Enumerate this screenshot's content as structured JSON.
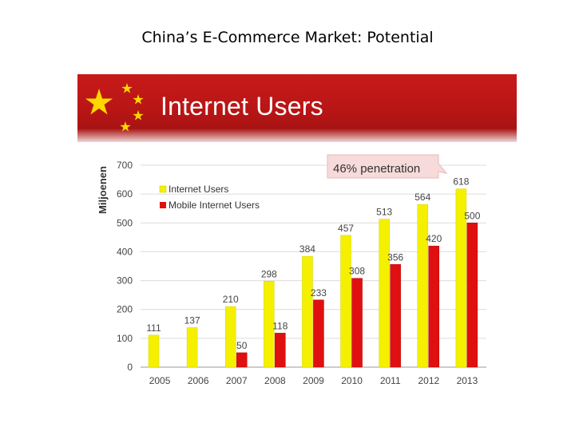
{
  "slide": {
    "title": "China’s E-Commerce Market: Potential"
  },
  "banner": {
    "title": "Internet Users",
    "icon": "china-flag-stars-icon"
  },
  "chart_data": {
    "type": "bar",
    "title": "Internet Users",
    "ylabel": "Miljoenen",
    "xlabel": "",
    "ylim": [
      0,
      700
    ],
    "yticks": [
      0,
      100,
      200,
      300,
      400,
      500,
      600,
      700
    ],
    "categories": [
      "2005",
      "2006",
      "2007",
      "2008",
      "2009",
      "2010",
      "2011",
      "2012",
      "2013"
    ],
    "series": [
      {
        "name": "Internet Users",
        "color": "#f5f000",
        "values": [
          111,
          137,
          210,
          298,
          384,
          457,
          513,
          564,
          618
        ]
      },
      {
        "name": "Mobile Internet Users",
        "color": "#e01010",
        "values": [
          null,
          null,
          50,
          118,
          233,
          308,
          356,
          420,
          500
        ]
      }
    ],
    "annotation": "46% penetration",
    "legend_position": "top-left",
    "grid": true
  }
}
